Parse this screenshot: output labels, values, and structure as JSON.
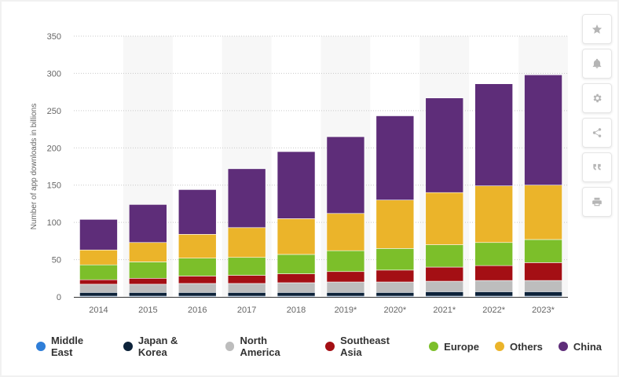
{
  "chart_data": {
    "type": "stacked-bar",
    "title": "",
    "xlabel": "",
    "ylabel": "Number of app downloads in billions",
    "ylim": [
      0,
      350
    ],
    "yticks": [
      0,
      50,
      100,
      150,
      200,
      250,
      300,
      350
    ],
    "grid": true,
    "legend_position": "bottom-left",
    "categories": [
      "2014",
      "2015",
      "2016",
      "2017",
      "2018",
      "2019*",
      "2020*",
      "2021*",
      "2022*",
      "2023*"
    ],
    "series": [
      {
        "name": "Middle East",
        "color": "#2f7ed8",
        "values": [
          1,
          1,
          1,
          1,
          1,
          1,
          1,
          1,
          1,
          1
        ]
      },
      {
        "name": "Japan & Korea",
        "color": "#0d233a",
        "values": [
          5,
          5,
          5,
          5,
          5,
          5,
          5,
          6,
          6,
          6
        ]
      },
      {
        "name": "North America",
        "color": "#bdbdbd",
        "values": [
          11,
          11,
          12,
          12,
          13,
          14,
          14,
          14,
          15,
          15
        ]
      },
      {
        "name": "Southeast Asia",
        "color": "#a40f14",
        "values": [
          6,
          8,
          10,
          11,
          12,
          14,
          16,
          19,
          20,
          24
        ]
      },
      {
        "name": "Europe",
        "color": "#7cbf2a",
        "values": [
          20,
          22,
          24,
          24,
          26,
          28,
          29,
          30,
          31,
          31
        ]
      },
      {
        "name": "Others",
        "color": "#ebb42a",
        "values": [
          20,
          26,
          32,
          40,
          48,
          50,
          65,
          70,
          76,
          73
        ]
      },
      {
        "name": "China",
        "color": "#5e2d79",
        "values": [
          41,
          51,
          60,
          79,
          90,
          103,
          113,
          127,
          137,
          148
        ]
      }
    ]
  },
  "toolbar": {
    "buttons": [
      {
        "name": "star-icon"
      },
      {
        "name": "bell-icon"
      },
      {
        "name": "gear-icon"
      },
      {
        "name": "share-icon"
      },
      {
        "name": "quote-icon"
      },
      {
        "name": "print-icon"
      }
    ]
  }
}
